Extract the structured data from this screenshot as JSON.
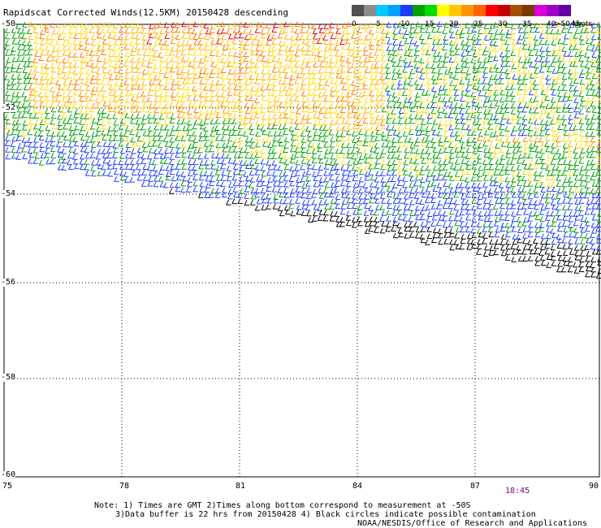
{
  "title": "Rapidscat Corrected Winds(12.5KM) 20150428 descending",
  "legend": {
    "colors": [
      "#505050",
      "#8c8c8c",
      "#00c8ff",
      "#00a0ff",
      "#1e3cff",
      "#00a000",
      "#00dc00",
      "#ffff00",
      "#ffc800",
      "#ff9600",
      "#ff6400",
      "#ff0000",
      "#c80000",
      "#a05000",
      "#783c00",
      "#dc00dc",
      "#a000c8",
      "#6400a0"
    ],
    "labels": [
      "0",
      "5",
      "10",
      "15",
      "20",
      "25",
      "30",
      "35",
      "40",
      "45",
      ">50 knots"
    ]
  },
  "axes": {
    "y_labels": [
      "-50",
      "-52",
      "-54",
      "-56",
      "-58",
      "-60"
    ],
    "x_labels": [
      "75",
      "78",
      "81",
      "84",
      "87",
      "90"
    ]
  },
  "timestamp": "18:45",
  "notes": {
    "line1": "Note: 1) Times are GMT 2)Times along bottom correspond to measurement at -50S",
    "line2": "3)Data buffer is 22 hrs from 20150428 4) Black circles indicate possible contamination",
    "line3": "NOAA/NESDIS/Office of Research and Applications"
  }
}
